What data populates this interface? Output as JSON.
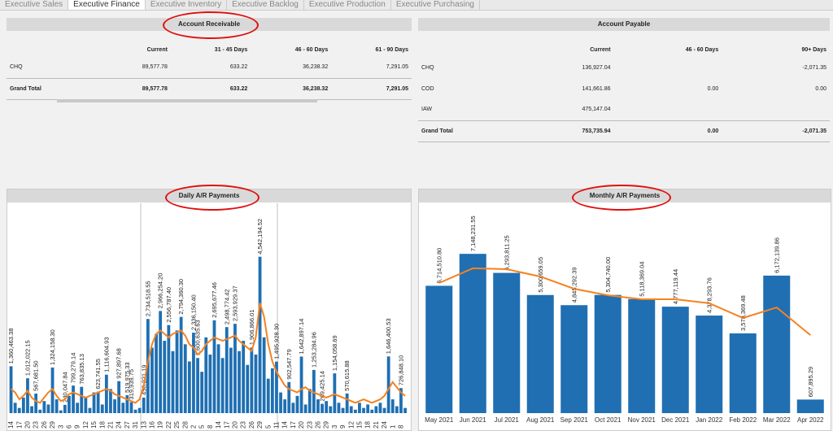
{
  "tabs": [
    "Executive Sales",
    "Executive Finance",
    "Executive Inventory",
    "Executive Backlog",
    "Executive Production",
    "Executive Purchasing"
  ],
  "active_tab": 1,
  "receivable": {
    "title": "Account Receivable",
    "columns": [
      "Current",
      "31 - 45 Days",
      "46 - 60 Days",
      "61 - 90 Days"
    ],
    "rows": [
      {
        "label": "CHQ",
        "cells": [
          "89,577.78",
          "633.22",
          "36,238.32",
          "7,291.05"
        ]
      },
      {
        "label": "Grand Total",
        "cells": [
          "89,577.78",
          "633.22",
          "36,238.32",
          "7,291.05"
        ]
      }
    ]
  },
  "payable": {
    "title": "Account Payable",
    "columns": [
      "Current",
      "46 - 60 Days",
      "90+ Days"
    ],
    "rows": [
      {
        "label": "CHQ",
        "cells": [
          "136,927.04",
          null,
          "-2,071.35"
        ]
      },
      {
        "label": "COD",
        "cells": [
          "141,661.86",
          "0.00",
          "0.00"
        ]
      },
      {
        "label": "IAW",
        "cells": [
          "475,147.04",
          null,
          null
        ]
      },
      {
        "label": "Grand Total",
        "cells": [
          "753,735.94",
          "0.00",
          "-2,071.35"
        ]
      }
    ]
  },
  "chart_data": [
    {
      "type": "bar",
      "title": "Daily A/R Payments",
      "categories": [
        "14",
        null,
        "17",
        null,
        "20",
        null,
        "23",
        null,
        "26",
        null,
        "29",
        null,
        "3",
        null,
        "6",
        null,
        "9",
        null,
        "12",
        null,
        "15",
        null,
        "18",
        null,
        "21",
        null,
        "24",
        null,
        "27",
        null,
        "31",
        null,
        "13",
        null,
        "16",
        null,
        "19",
        null,
        "22",
        null,
        "25",
        null,
        "28",
        null,
        "2",
        null,
        "5",
        null,
        "8",
        null,
        "14",
        null,
        "17",
        null,
        "20",
        null,
        "23",
        null,
        "26",
        null,
        "29",
        null,
        "5",
        null,
        "11",
        null,
        "14",
        null,
        "17",
        null,
        "20",
        null,
        "23",
        null,
        "26",
        null,
        "29",
        null,
        "3",
        null,
        "9",
        null,
        "12",
        null,
        "15",
        null,
        "18",
        null,
        "21",
        null,
        "24",
        null,
        "1",
        null,
        "8",
        null
      ],
      "series": [
        {
          "color": "#1f6fb2",
          "values": [
            1360463.38,
            300000,
            150000,
            450000,
            1012022.15,
            200000,
            567681.5,
            100000,
            350000,
            250000,
            1324158.3,
            400000,
            80000,
            240047.84,
            500000,
            799279.14,
            300000,
            763835.13,
            450000,
            150000,
            600000,
            623741.55,
            250000,
            1116604.93,
            700000,
            400000,
            927897.68,
            300000,
            519975.33,
            319939.75,
            100000,
            150000,
            450221.19,
            2734518.55,
            1900000,
            2300000,
            2966254.2,
            2100000,
            2556787.4,
            1800000,
            2400000,
            2794360.3,
            2000000,
            1500000,
            2336150.4,
            1600635.63,
            1200000,
            2200000,
            1700000,
            2695677.46,
            2000000,
            1600000,
            2498774.42,
            1900000,
            2593929.37,
            1800000,
            2100000,
            1400000,
            1906866.01,
            1700000,
            4542194.52,
            2200000,
            1000000,
            1300000,
            1495928.3,
            600000,
            400000,
            902547.79,
            300000,
            500000,
            1642897.14,
            250000,
            700000,
            1253284.96,
            400000,
            269425.14,
            350000,
            200000,
            1154058.69,
            300000,
            150000,
            570615.88,
            200000,
            100000,
            300000,
            150000,
            250000,
            100000,
            200000,
            300000,
            150000,
            1646400.53,
            400000,
            200000,
            726848.1,
            150000
          ],
          "value_labels": [
            "1,360,463.38",
            null,
            null,
            null,
            "1,012,022.15",
            null,
            "567,681.50",
            null,
            null,
            null,
            "1,324,158.30",
            null,
            null,
            "240,047.84",
            null,
            "799,279.14",
            null,
            "763,835.13",
            null,
            null,
            null,
            "623,741.55",
            null,
            "1,116,604.93",
            null,
            null,
            "927,897.68",
            null,
            "519,975.33",
            "319,939.75",
            null,
            null,
            "450,221.19",
            "2,734,518.55",
            null,
            null,
            "2,966,254.20",
            null,
            "2,556,787.40",
            null,
            null,
            "2,794,360.30",
            null,
            null,
            "2,336,150.40",
            "1,600,635.63",
            null,
            null,
            null,
            "2,695,677.46",
            null,
            null,
            "2,498,774.42",
            null,
            "2,593,929.37",
            null,
            null,
            null,
            "1,906,866.01",
            null,
            "4,542,194.52",
            null,
            null,
            null,
            "1,495,928.30",
            null,
            null,
            "902,547.79",
            null,
            null,
            "1,642,897.14",
            null,
            null,
            "1,253,284.96",
            null,
            "269,425.14",
            null,
            null,
            "1,154,058.69",
            null,
            null,
            "570,615.88",
            null,
            null,
            null,
            null,
            null,
            null,
            null,
            null,
            null,
            "1,646,400.53",
            null,
            null,
            "726,848.10",
            null
          ]
        },
        {
          "type": "line",
          "color": "#f58220",
          "values": [
            700000,
            600000,
            400000,
            500000,
            650000,
            450000,
            350000,
            300000,
            450000,
            600000,
            700000,
            500000,
            350000,
            400000,
            550000,
            600000,
            550000,
            500000,
            450000,
            500000,
            550000,
            600000,
            650000,
            700000,
            650000,
            550000,
            500000,
            450000,
            400000,
            350000,
            300000,
            400000,
            800000,
            1500000,
            2000000,
            2300000,
            2400000,
            2300000,
            2200000,
            2300000,
            2350000,
            2400000,
            2250000,
            2000000,
            1900000,
            1700000,
            1800000,
            2000000,
            2100000,
            2200000,
            2150000,
            2100000,
            2150000,
            2200000,
            2250000,
            2100000,
            2000000,
            1900000,
            1800000,
            2200000,
            3200000,
            2800000,
            2000000,
            1500000,
            1200000,
            1000000,
            800000,
            700000,
            650000,
            600000,
            700000,
            750000,
            650000,
            600000,
            550000,
            500000,
            450000,
            500000,
            550000,
            500000,
            450000,
            400000,
            350000,
            300000,
            350000,
            400000,
            350000,
            300000,
            350000,
            400000,
            500000,
            700000,
            900000,
            750000,
            600000,
            500000
          ]
        }
      ]
    },
    {
      "type": "bar",
      "title": "Monthly A/R Payments",
      "categories": [
        "May 2021",
        "Jun 2021",
        "Jul 2021",
        "Aug 2021",
        "Sep 2021",
        "Oct 2021",
        "Nov 2021",
        "Dec 2021",
        "Jan 2022",
        "Feb 2022",
        "Mar 2022",
        "Apr 2022"
      ],
      "series": [
        {
          "color": "#1f6fb2",
          "values": [
            5714510.8,
            7148231.55,
            6293811.25,
            5300659.05,
            4845292.39,
            5304740.0,
            5118369.04,
            4777119.44,
            4378293.76,
            3578369.48,
            6172139.86,
            607895.29
          ],
          "value_labels": [
            "5,714,510.80",
            "7,148,231.55",
            "6,293,811.25",
            "5,300,659.05",
            "4,845,292.39",
            "5,304,740.00",
            "5,118,369.04",
            "4,777,119.44",
            "4,378,293.76",
            "3,578,369.48",
            "6,172,139.86",
            "607,895.29"
          ]
        },
        {
          "type": "line",
          "color": "#f58220",
          "values": [
            5840000,
            6500000,
            6460000,
            6130000,
            5580000,
            5290000,
            5110000,
            5110000,
            4930000,
            4270000,
            4740000,
            3500000
          ]
        }
      ]
    }
  ]
}
